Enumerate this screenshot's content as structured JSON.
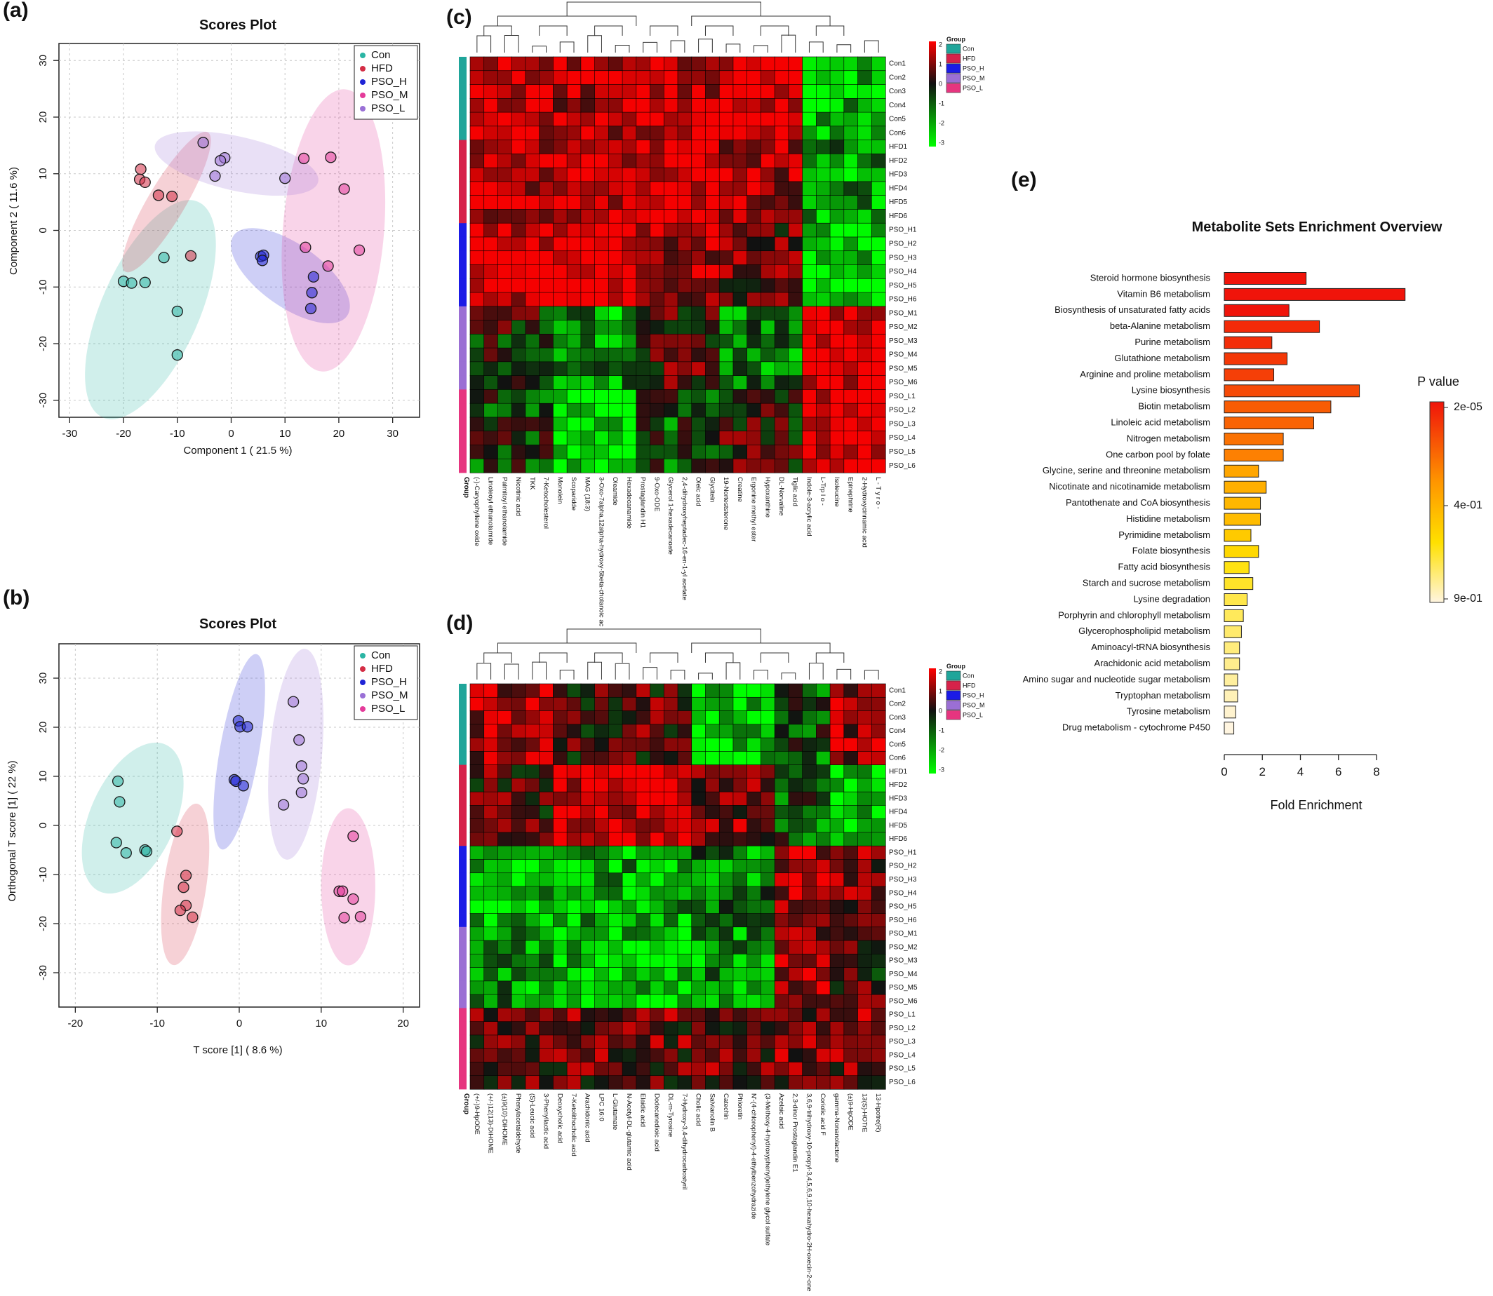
{
  "panels": {
    "a": {
      "tag": "(a)",
      "title": "Scores Plot",
      "xlabel": "Component 1 ( 21.5 %)",
      "ylabel": "Component 2 ( 11.6 %)"
    },
    "b": {
      "tag": "(b)",
      "title": "Scores Plot",
      "xlabel": "T score [1] ( 8.6 %)",
      "ylabel": "Orthogonal T score [1] ( 22 %)"
    },
    "c": {
      "tag": "(c)"
    },
    "d": {
      "tag": "(d)"
    },
    "e": {
      "tag": "(e)",
      "title": "Metabolite Sets Enrichment Overview",
      "xlabel": "Fold Enrichment",
      "legend_title": "P value"
    }
  },
  "colors": {
    "Con": "#2bb5a4",
    "HFD": "#d42d45",
    "PSO_H": "#1f24d6",
    "PSO_M": "#e43b9a",
    "PSO_L": "#9a70d6",
    "groupbar": {
      "Con": "#1fa59a",
      "HFD": "#d6224a",
      "PSO_H": "#1b1be6",
      "PSO_M": "#9b6fd4",
      "PSO_L": "#e6357f"
    }
  },
  "chart_data": [
    {
      "id": "a",
      "type": "scatter",
      "xlim": [
        -32,
        35
      ],
      "ylim": [
        -33,
        33
      ],
      "xticks": [
        -30,
        -20,
        -10,
        0,
        10,
        20,
        30
      ],
      "yticks": [
        -30,
        -20,
        -10,
        0,
        10,
        20,
        30
      ],
      "grid": true,
      "legend_position": "top-right",
      "series": [
        {
          "name": "Con",
          "color": "#2bb5a4",
          "x": [
            -20,
            -18.5,
            -16,
            -12.5,
            -10,
            -10
          ],
          "y": [
            -9,
            -9.3,
            -9.2,
            -4.8,
            -14.3,
            -22
          ]
        },
        {
          "name": "HFD",
          "color": "#d42d45",
          "x": [
            -16.8,
            -17,
            -16,
            -13.5,
            -11,
            -7.5
          ],
          "y": [
            10.8,
            9,
            8.5,
            6.2,
            6,
            -4.5
          ]
        },
        {
          "name": "PSO_H",
          "color": "#1f24d6",
          "x": [
            5.5,
            6,
            5.8,
            15.3,
            15,
            14.8
          ],
          "y": [
            -4.6,
            -4.4,
            -5.3,
            -8.2,
            -11,
            -13.8
          ]
        },
        {
          "name": "PSO_M",
          "color": "#e43b9a",
          "x": [
            13.5,
            18.5,
            21,
            13.8,
            18,
            23.8
          ],
          "y": [
            12.7,
            12.9,
            7.3,
            -3,
            -6.3,
            -3.5
          ]
        },
        {
          "name": "PSO_L",
          "color": "#9a70d6",
          "x": [
            -5.2,
            -1.2,
            -2,
            -3,
            10
          ],
          "y": [
            15.5,
            12.8,
            12.3,
            9.6,
            9.2
          ]
        }
      ],
      "ellipses": [
        {
          "group": "Con",
          "cx": -15,
          "cy": -14,
          "rx": 21,
          "ry": 9,
          "angle": 65
        },
        {
          "group": "HFD",
          "cx": -12,
          "cy": 5,
          "rx": 14.5,
          "ry": 3.4,
          "angle": 58
        },
        {
          "group": "PSO_H",
          "cx": 11,
          "cy": -8,
          "rx": 12.7,
          "ry": 5.6,
          "angle": -34
        },
        {
          "group": "PSO_M",
          "cx": 19,
          "cy": 0,
          "rx": 25,
          "ry": 9.4,
          "angle": 85
        },
        {
          "group": "PSO_L",
          "cx": 1,
          "cy": 11.8,
          "rx": 15.5,
          "ry": 4.8,
          "angle": -12
        }
      ]
    },
    {
      "id": "b",
      "type": "scatter",
      "xlim": [
        -22,
        22
      ],
      "ylim": [
        -37,
        37
      ],
      "xticks": [
        -20,
        -10,
        0,
        10,
        20
      ],
      "yticks": [
        -30,
        -20,
        -10,
        0,
        10,
        20,
        30
      ],
      "grid": true,
      "legend_position": "top-right",
      "series": [
        {
          "name": "Con",
          "color": "#2bb5a4",
          "x": [
            -14.8,
            -14.6,
            -15,
            -13.8,
            -11.5,
            -11.3
          ],
          "y": [
            9,
            4.8,
            -3.5,
            -5.6,
            -5,
            -5.3
          ]
        },
        {
          "name": "HFD",
          "color": "#d42d45",
          "x": [
            -7.6,
            -6.5,
            -6.8,
            -6.5,
            -7.2,
            -5.7
          ],
          "y": [
            -1.2,
            -10.2,
            -12.6,
            -16.3,
            -17.3,
            -18.7
          ]
        },
        {
          "name": "PSO_H",
          "color": "#1f24d6",
          "x": [
            -0.1,
            0.1,
            1,
            -0.6,
            -0.4,
            0.5
          ],
          "y": [
            21.3,
            20.1,
            20.1,
            9.3,
            9,
            8.1
          ]
        },
        {
          "name": "PSO_M",
          "color": "#9a70d6",
          "x": [
            6.6,
            7.3,
            7.6,
            7.8,
            7.6,
            5.4
          ],
          "y": [
            25.2,
            17.4,
            12.1,
            9.5,
            6.7,
            4.2
          ]
        },
        {
          "name": "PSO_L",
          "color": "#e43b9a",
          "x": [
            13.9,
            12.2,
            12.6,
            13.9,
            12.8,
            14.8
          ],
          "y": [
            -2.2,
            -13.4,
            -13.4,
            -15,
            -18.8,
            -18.6
          ]
        }
      ],
      "ellipses": [
        {
          "group": "Con",
          "cx": -13,
          "cy": 1.5,
          "rx": 15.5,
          "ry": 5.3,
          "angle": 75
        },
        {
          "group": "HFD",
          "cx": -6.6,
          "cy": -12,
          "rx": 16.5,
          "ry": 2.6,
          "angle": 85
        },
        {
          "group": "PSO_H",
          "cx": 0,
          "cy": 15,
          "rx": 20,
          "ry": 2.4,
          "angle": 84
        },
        {
          "group": "PSO_M",
          "cx": 6.9,
          "cy": 14.5,
          "rx": 21.5,
          "ry": 3.2,
          "angle": 87
        },
        {
          "group": "PSO_L",
          "cx": 13.3,
          "cy": -12.5,
          "rx": 16,
          "ry": 3.3,
          "angle": 90
        }
      ]
    },
    {
      "id": "c",
      "type": "heatmap",
      "rows": [
        "Con1",
        "Con2",
        "Con3",
        "Con4",
        "Con5",
        "Con6",
        "HFD1",
        "HFD2",
        "HFD3",
        "HFD4",
        "HFD5",
        "HFD6",
        "PSO_H1",
        "PSO_H2",
        "PSO_H3",
        "PSO_H4",
        "PSO_H5",
        "PSO_H6",
        "PSO_M1",
        "PSO_M2",
        "PSO_M3",
        "PSO_M4",
        "PSO_M5",
        "PSO_M6",
        "PSO_L1",
        "PSO_L2",
        "PSO_L3",
        "PSO_L4",
        "PSO_L5",
        "PSO_L6"
      ],
      "row_groups": [
        "Con",
        "Con",
        "Con",
        "Con",
        "Con",
        "Con",
        "HFD",
        "HFD",
        "HFD",
        "HFD",
        "HFD",
        "HFD",
        "PSO_H",
        "PSO_H",
        "PSO_H",
        "PSO_H",
        "PSO_H",
        "PSO_H",
        "PSO_M",
        "PSO_M",
        "PSO_M",
        "PSO_M",
        "PSO_M",
        "PSO_M",
        "PSO_L",
        "PSO_L",
        "PSO_L",
        "PSO_L",
        "PSO_L",
        "PSO_L"
      ],
      "columns": [
        "(-)-Caryophyllene oxide",
        "Linoleoyl ethanolamide",
        "Palmitoyl ethanolamide",
        "Nicotinic acid",
        "TKK",
        "7-Ketocholesterol",
        "Monolein",
        "Scoparidde",
        "MAG (18:3)",
        "3-Oxo-7alpha,12alpha-hydroxy-5beta-cholanoic ac",
        "Oleamide",
        "Hexadecanamide",
        "Prostaglandin H1",
        "9-Oxo-ODE",
        "Glycerol 1-hexadecanoate",
        "2,4-dihydroxyheptadec-16-en-1-yl acetate",
        "Oleic acid",
        "Glycitein",
        "19-Norteststerone",
        "Creatine",
        "Ergonine methyl ester",
        "Hypoxanthine",
        "DL-Norvaline",
        "Tiglic acid",
        "Indole-3-acrylic acid",
        "L-Trp l o -",
        "Isoleucine",
        "Epinephrine",
        "2-Hydroxycinnamic acid",
        "L - T y r o -"
      ],
      "scale": [
        -3,
        -2,
        -1,
        0,
        1,
        2
      ],
      "color_low": "#00ff00",
      "color_mid": "#111111",
      "color_high": "#ff0000",
      "pattern": [
        [
          0.8,
          0.6,
          0.7,
          0.9,
          -0.8
        ],
        [
          0.7,
          0.8,
          0.9,
          0.6,
          -0.6
        ],
        [
          0.8,
          1.0,
          0.6,
          0.3,
          -0.9
        ],
        [
          0.0,
          -0.6,
          0.2,
          -0.5,
          0.9
        ],
        [
          -0.2,
          -1.0,
          -0.3,
          0.1,
          0.9
        ]
      ],
      "col_blocks": [
        6,
        12,
        18,
        24,
        30
      ]
    },
    {
      "id": "d",
      "type": "heatmap",
      "rows": [
        "Con1",
        "Con2",
        "Con3",
        "Con4",
        "Con5",
        "Con6",
        "HFD1",
        "HFD2",
        "HFD3",
        "HFD4",
        "HFD5",
        "HFD6",
        "PSO_H1",
        "PSO_H2",
        "PSO_H3",
        "PSO_H4",
        "PSO_H5",
        "PSO_H6",
        "PSO_M1",
        "PSO_M2",
        "PSO_M3",
        "PSO_M4",
        "PSO_M5",
        "PSO_M6",
        "PSO_L1",
        "PSO_L2",
        "PSO_L3",
        "PSO_L4",
        "PSO_L5",
        "PSO_L6"
      ],
      "row_groups": [
        "Con",
        "Con",
        "Con",
        "Con",
        "Con",
        "Con",
        "HFD",
        "HFD",
        "HFD",
        "HFD",
        "HFD",
        "HFD",
        "PSO_H",
        "PSO_H",
        "PSO_H",
        "PSO_H",
        "PSO_H",
        "PSO_H",
        "PSO_M",
        "PSO_M",
        "PSO_M",
        "PSO_M",
        "PSO_M",
        "PSO_M",
        "PSO_L",
        "PSO_L",
        "PSO_L",
        "PSO_L",
        "PSO_L",
        "PSO_L"
      ],
      "columns": [
        "(+/-)9-HpODE",
        "(+/-)12(13)-DiHOME",
        "(±)9(10)-DiHOME",
        "Phenylacetaldehyde",
        "(S)-Leucic acid",
        "3-Phenyllactic acid",
        "Deoxycholic acid",
        "7-Ketolithocholic acid",
        "Arachidonic acid",
        "LPC 16:0",
        "L-Glutamate",
        "N-Acetyl-DL-glutamic acid",
        "Elaidic acid",
        "Dodecanedioic acid",
        "DL-m-Tyrosine",
        "7-Hydroxy-3,4-dihydrocarbostyril",
        "Cholic acid",
        "Salvianolin B",
        "Catechin",
        "Phloretin",
        "N'-(4-chlorophenyl)-4-ethylbenzohydrazide",
        "(3-Methoxy-4-hydroxyphenyl)ethylene glycol sulfate",
        "Azelaic acid",
        "2,3-dinor Prostaglandin E1",
        "3,6,9-trihydroxy-10-propyl-3,4,5,6,9,10-hexahydro-2H-oxecin-2-one",
        "Coriolic acid F",
        "gamma-Nonanolactone",
        "(±)9-HpODE",
        "13(S)-HOTrE",
        "13-Hpotre(R)"
      ],
      "scale": [
        -3,
        -2,
        -1,
        0,
        1,
        2
      ],
      "color_low": "#00ff00",
      "color_mid": "#111111",
      "color_high": "#ff0000",
      "pattern": [
        [
          0.5,
          0.2,
          -0.9,
          -0.3,
          0.5
        ],
        [
          0.2,
          0.8,
          0.4,
          -0.4,
          -0.9
        ],
        [
          -0.8,
          -0.7,
          -0.5,
          0.6,
          0.4
        ],
        [
          -0.6,
          -0.8,
          -0.6,
          0.5,
          0.1
        ],
        [
          0.2,
          0.3,
          0.3,
          0.4,
          0.4
        ]
      ],
      "col_blocks": [
        6,
        16,
        22,
        26,
        30
      ]
    },
    {
      "id": "e",
      "type": "bar",
      "orientation": "horizontal",
      "categories": [
        "Steroid hormone biosynthesis",
        "Vitamin B6 metabolism",
        "Biosynthesis of unsaturated fatty acids",
        "beta-Alanine metabolism",
        "Purine metabolism",
        "Glutathione metabolism",
        "Arginine and proline metabolism",
        "Lysine biosynthesis",
        "Biotin metabolism",
        "Linoleic acid metabolism",
        "Nitrogen metabolism",
        "One carbon pool by folate",
        "Glycine, serine and threonine metabolism",
        "Nicotinate and nicotinamide metabolism",
        "Pantothenate and CoA biosynthesis",
        "Histidine metabolism",
        "Pyrimidine metabolism",
        "Folate biosynthesis",
        "Fatty acid biosynthesis",
        "Starch and sucrose metabolism",
        "Lysine degradation",
        "Porphyrin and chlorophyll metabolism",
        "Glycerophospholipid metabolism",
        "Aminoacyl-tRNA biosynthesis",
        "Arachidonic acid metabolism",
        "Amino sugar and nucleotide sugar metabolism",
        "Tryptophan metabolism",
        "Tyrosine metabolism",
        "Drug metabolism - cytochrome P450"
      ],
      "values": [
        4.3,
        9.5,
        3.4,
        5.0,
        2.5,
        3.3,
        2.6,
        7.1,
        5.6,
        4.7,
        3.1,
        3.1,
        1.8,
        2.2,
        1.9,
        1.9,
        1.4,
        1.8,
        1.3,
        1.5,
        1.2,
        1.0,
        0.9,
        0.8,
        0.8,
        0.7,
        0.7,
        0.6,
        0.5
      ],
      "p_values": [
        2e-05,
        2e-05,
        2e-05,
        0.06,
        0.07,
        0.1,
        0.12,
        0.15,
        0.2,
        0.22,
        0.26,
        0.3,
        0.42,
        0.45,
        0.48,
        0.5,
        0.55,
        0.6,
        0.65,
        0.68,
        0.72,
        0.74,
        0.76,
        0.78,
        0.8,
        0.82,
        0.85,
        0.88,
        0.9
      ],
      "xticks": [
        0,
        2,
        4,
        6,
        8
      ],
      "xlim": [
        0,
        9.5
      ],
      "legend_labels": [
        "2e-05",
        "4e-01",
        "9e-01"
      ]
    }
  ]
}
